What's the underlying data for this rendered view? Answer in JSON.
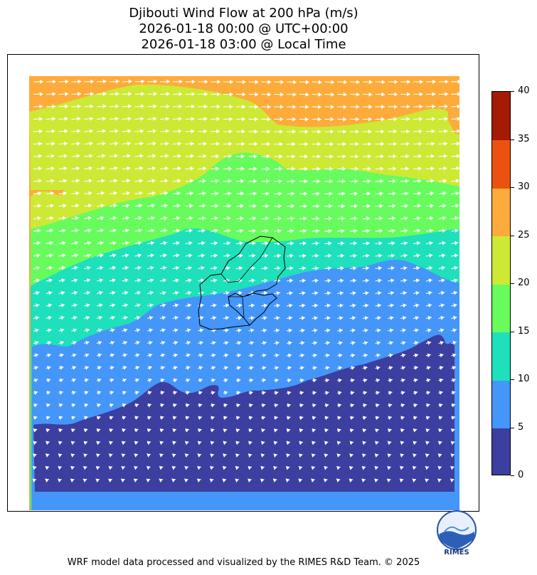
{
  "header": {
    "title_line1": "Djibouti Wind Flow at 200 hPa (m/s)",
    "title_line2": "2026-01-18 00:00 @ UTC+00:00",
    "title_line3": "2026-01-18 03:00 @ Local Time"
  },
  "colorbar": {
    "ticks": [
      "0",
      "5",
      "10",
      "15",
      "20",
      "25",
      "30",
      "35",
      "40"
    ],
    "colors": [
      "#3c3ea0",
      "#4496f8",
      "#1ee0bb",
      "#67fb5d",
      "#cde935",
      "#fdab3a",
      "#eb520f",
      "#a41a03"
    ]
  },
  "map": {
    "background": "#ffffff",
    "arrow_color": "#ffffff",
    "border_color": "#000000"
  },
  "logo": {
    "text": "RIMES"
  },
  "footer": {
    "credit": "WRF model data processed and visualized by the RIMES R&D Team. © 2025"
  }
}
